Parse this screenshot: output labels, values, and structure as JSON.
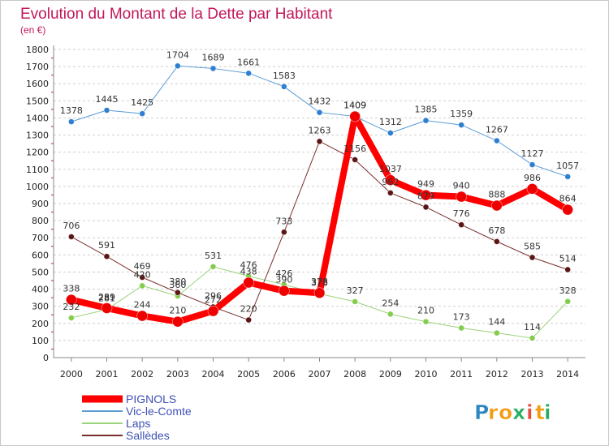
{
  "chart_data": {
    "type": "line",
    "title": "Evolution du Montant de la Dette par Habitant",
    "subtitle": "(en €)",
    "xlabel": "",
    "ylabel": "",
    "x": [
      "2000",
      "2001",
      "2002",
      "2003",
      "2004",
      "2005",
      "2006",
      "2007",
      "2008",
      "2009",
      "2010",
      "2011",
      "2012",
      "2013",
      "2014"
    ],
    "ylim": [
      0,
      1800
    ],
    "yticks": [
      0,
      100,
      200,
      300,
      400,
      500,
      600,
      700,
      800,
      900,
      1000,
      1100,
      1200,
      1300,
      1400,
      1500,
      1600,
      1700,
      1800
    ],
    "grid": "dashed horizontal",
    "legend_position": "bottom-left",
    "series": [
      {
        "name": "Vic-le-Comte",
        "color": "#5b9bd5",
        "marker": "#2f7fd1",
        "width": 1,
        "values": [
          1378,
          1445,
          1425,
          1704,
          1689,
          1661,
          1583,
          1432,
          1409,
          1312,
          1385,
          1359,
          1267,
          1127,
          1057
        ]
      },
      {
        "name": "Laps",
        "color": "#9bd37a",
        "marker": "#84cc4e",
        "width": 1,
        "values": [
          232,
          281,
          420,
          360,
          531,
          476,
          426,
          373,
          327,
          254,
          210,
          173,
          144,
          114,
          328
        ]
      },
      {
        "name": "Sallèdes",
        "color": "#7a2e2e",
        "marker": "#5c1515",
        "width": 1,
        "values": [
          706,
          591,
          469,
          380,
          296,
          220,
          733,
          1263,
          1156,
          962,
          879,
          776,
          678,
          585,
          514
        ]
      },
      {
        "name": "PIGNOLS",
        "color": "#ff0000",
        "marker": "#ee0000",
        "width": 8,
        "values": [
          338,
          289,
          244,
          210,
          272,
          438,
          390,
          378,
          1409,
          1037,
          949,
          940,
          888,
          986,
          864
        ]
      }
    ]
  },
  "logo": {
    "letters": [
      "P",
      "r",
      "o",
      "x",
      "i",
      "t",
      "i"
    ],
    "colors": [
      "#2e86c1",
      "#f39c12",
      "#f39c12",
      "#27ae60",
      "#e74c3c",
      "#f39c12",
      "#27ae60"
    ]
  }
}
